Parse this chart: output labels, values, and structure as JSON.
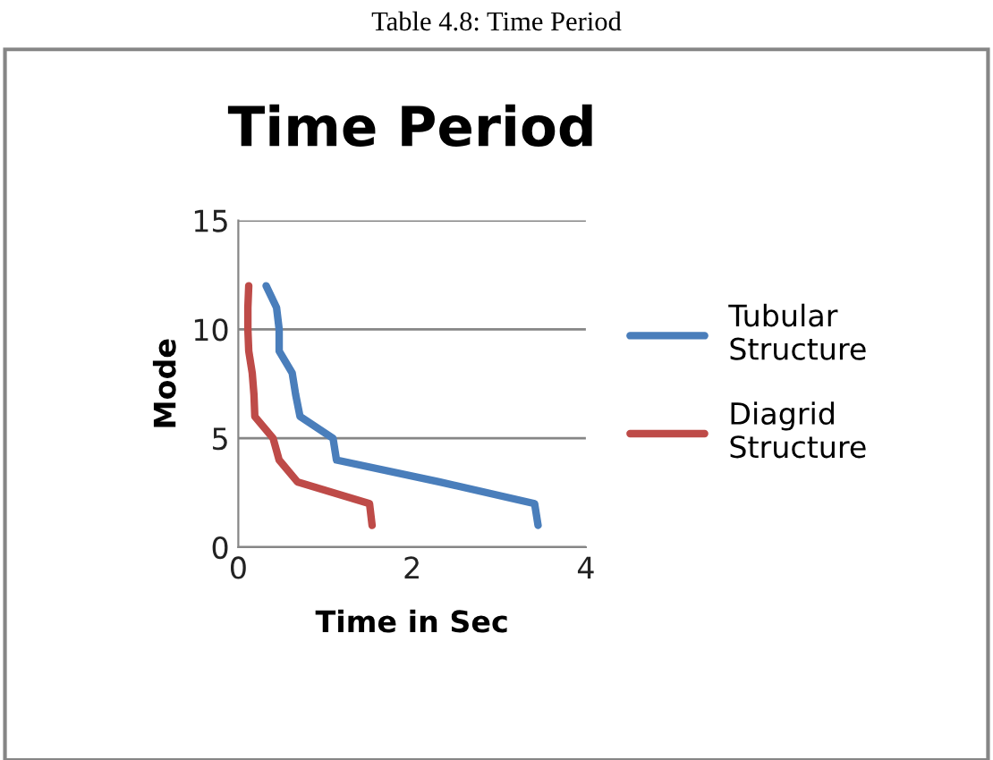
{
  "chart_data": {
    "type": "line",
    "title": "Time Period",
    "xlabel": "Time in Sec",
    "ylabel": "Mode",
    "annotations": [
      "Table 4.8: Time Period"
    ],
    "series": [
      {
        "name": "Tubular Structure",
        "color": "#4a7ebb",
        "x": [
          3.45,
          3.41,
          2.31,
          1.13,
          1.09,
          0.71,
          0.66,
          0.62,
          0.47,
          0.47,
          0.44,
          0.32
        ],
        "values": [
          1,
          2,
          3,
          4,
          5,
          6,
          7,
          8,
          9,
          10,
          11,
          12
        ]
      },
      {
        "name": "Diagrid Structure",
        "color": "#be4b48",
        "x": [
          1.54,
          1.51,
          0.68,
          0.47,
          0.4,
          0.19,
          0.18,
          0.16,
          0.12,
          0.11,
          0.11,
          0.12
        ],
        "values": [
          1,
          2,
          3,
          4,
          5,
          6,
          7,
          8,
          9,
          10,
          11,
          12
        ]
      }
    ],
    "xlim": [
      0,
      4
    ],
    "xticks": [
      0,
      2,
      4
    ],
    "ylim": [
      0,
      15
    ],
    "yticks": [
      0,
      5,
      10,
      15
    ],
    "grid": "y",
    "legend": "right",
    "marker": "none",
    "line_style": "solid"
  }
}
